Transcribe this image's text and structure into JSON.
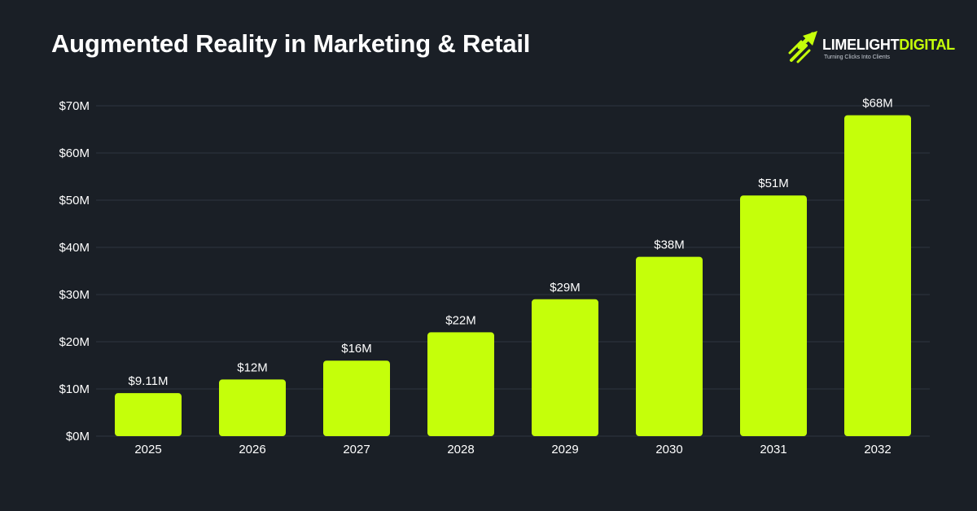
{
  "header": {
    "title": "Augmented Reality in Marketing & Retail"
  },
  "brand": {
    "name_part1": "LIMELIGHT",
    "name_part2": "DIGITAL",
    "tagline": "Turning Clicks Into Clients",
    "icon": "rocket-arrow-icon",
    "accent_color": "#c5ff0a"
  },
  "colors": {
    "background": "#1a1f26",
    "bar": "#c5ff0a",
    "grid": "#2f3540",
    "text": "#ffffff"
  },
  "chart_data": {
    "type": "bar",
    "categories": [
      "2025",
      "2026",
      "2027",
      "2028",
      "2029",
      "2030",
      "2031",
      "2032"
    ],
    "values": [
      9.11,
      12,
      16,
      22,
      29,
      38,
      51,
      68
    ],
    "data_labels": [
      "$9.11M",
      "$12M",
      "$16M",
      "$22M",
      "$29M",
      "$38M",
      "$51M",
      "$68M"
    ],
    "y_ticks": [
      0,
      10,
      20,
      30,
      40,
      50,
      60,
      70
    ],
    "y_tick_labels": [
      "$0M",
      "$10M",
      "$20M",
      "$30M",
      "$40M",
      "$50M",
      "$60M",
      "$70M"
    ],
    "ylim": [
      0,
      70
    ],
    "grid": true,
    "legend": "none",
    "title": "Augmented Reality in Marketing & Retail",
    "xlabel": "",
    "ylabel": ""
  }
}
